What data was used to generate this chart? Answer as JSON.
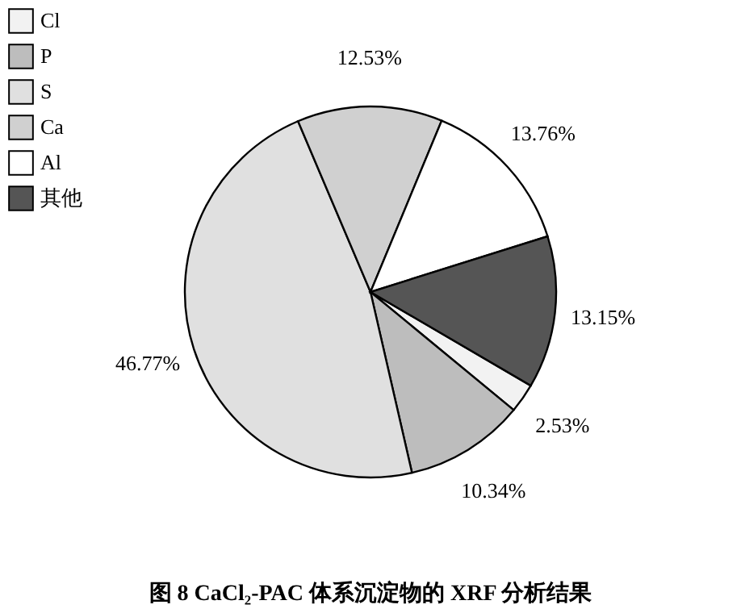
{
  "chart_data": {
    "type": "pie",
    "title": "图 8  CaCl₂-PAC 体系沉淀物的 XRF 分析结果",
    "categories": [
      "Cl",
      "P",
      "S",
      "Ca",
      "Al",
      "其他"
    ],
    "values": [
      2.53,
      10.34,
      46.77,
      12.53,
      13.76,
      13.15
    ],
    "value_labels": [
      "2.53%",
      "10.34%",
      "46.77%",
      "12.53%",
      "13.76%",
      "13.15%"
    ],
    "colors": [
      "#f2f2f2",
      "#bdbdbd",
      "#e0e0e0",
      "#d0d0d0",
      "#ffffff",
      "#555555"
    ],
    "legend": "top left"
  }
}
